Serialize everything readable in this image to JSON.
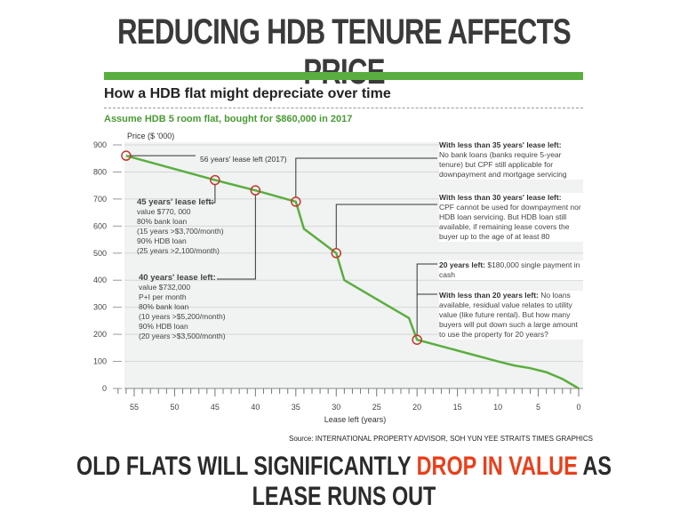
{
  "headline": "REDUCING HDB TENURE AFFECTS PRICE",
  "bottom": {
    "pre": "OLD FLATS WILL SIGNIFICANTLY ",
    "highlight": "DROP IN VALUE",
    "post": " AS LEASE RUNS OUT"
  },
  "colors": {
    "line": "#5aae3f",
    "marker": "#c0392b",
    "highlight": "#e8401c"
  },
  "chart_data": {
    "type": "line",
    "title": "How a HDB flat might depreciate over time",
    "subtitle": "Assume HDB 5 room flat, bought for $860,000 in 2017",
    "ylabel": "Price ($ '000)",
    "xlabel": "Lease left (years)",
    "xlim": [
      57,
      0
    ],
    "ylim": [
      0,
      900
    ],
    "xticks": [
      55,
      50,
      45,
      40,
      35,
      30,
      25,
      20,
      15,
      10,
      5,
      0
    ],
    "yticks": [
      0,
      100,
      200,
      300,
      400,
      500,
      600,
      700,
      800,
      900
    ],
    "grid": true,
    "points": [
      [
        56,
        860
      ],
      [
        45,
        770
      ],
      [
        40,
        732
      ],
      [
        35,
        690
      ],
      [
        34,
        590
      ],
      [
        30,
        500
      ],
      [
        29,
        400
      ],
      [
        25,
        330
      ],
      [
        21,
        260
      ],
      [
        20,
        180
      ],
      [
        15,
        140
      ],
      [
        10,
        100
      ],
      [
        8,
        85
      ],
      [
        6,
        75
      ],
      [
        4,
        60
      ],
      [
        2,
        35
      ],
      [
        0,
        0
      ]
    ],
    "markers": [
      [
        56,
        860
      ],
      [
        45,
        770
      ],
      [
        40,
        732
      ],
      [
        35,
        690
      ],
      [
        30,
        500
      ],
      [
        20,
        180
      ]
    ],
    "source": "Source: INTERNATIONAL PROPERTY ADVISOR, SOH YUN YEE   STRAITS TIMES GRAPHICS",
    "annotations": {
      "a56": "56 years' lease left (2017)",
      "a45_title": "45 years' lease left:",
      "a45_lines": [
        "value $770, 000",
        "80% bank loan",
        "(15 years >$3,700/month)",
        "90% HDB loan",
        "(25 years >2,100/month)"
      ],
      "a40_title": "40 years' lease left:",
      "a40_lines": [
        "value $732,000",
        "P+I per month",
        "80% bank loan",
        "(10 years >$5,200/month)",
        "90% HDB loan",
        "(20 years >$3,500/month)"
      ],
      "a35_title": "With less than 35 years' lease left:",
      "a35_text": "No bank loans (banks require 5-year tenure) but CPF still applicable for downpayment and mortgage servicing",
      "a30_title": "With less than 30 years' lease left:",
      "a30_text": "CPF cannot be used for downpayment nor HDB loan servicing. But HDB loan still available, if remaining lease covers the buyer up to the age of at least 80",
      "a20_title": "20 years left:",
      "a20_text": " $180,000 single payment in cash",
      "a20b_title": "With less than 20 years left:",
      "a20b_text": " No loans available, residual value relates to utility value (like future rental). But how many buyers will put down such a large amount to use the property for 20 years?"
    }
  }
}
